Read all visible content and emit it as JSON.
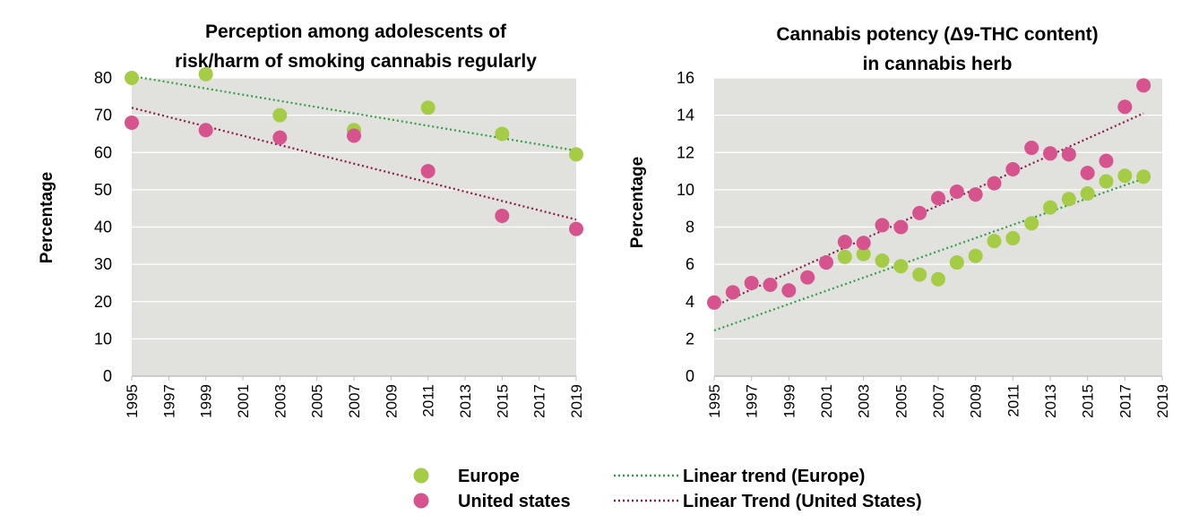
{
  "colors": {
    "europe": "#a4cc45",
    "united_states": "#d6538e",
    "trend_europe": "#2ea043",
    "trend_us": "#8b1a4a",
    "plot_bg": "#e1e1dd",
    "grid": "#ffffff"
  },
  "legend": {
    "europe": "Europe",
    "united_states": "United states",
    "trend_europe": "Linear trend (Europe)",
    "trend_us": "Linear Trend (United States)"
  },
  "chart_data": [
    {
      "type": "scatter",
      "title_lines": [
        "Perception among adolescents of",
        "risk/harm of smoking cannabis regularly"
      ],
      "ylabel": "Percentage",
      "xlim": [
        1995,
        2019
      ],
      "ylim": [
        0,
        80
      ],
      "xticks": [
        "1995",
        "1997",
        "1999",
        "2001",
        "2003",
        "2005",
        "2007",
        "2009",
        "2011",
        "2013",
        "2015",
        "2017",
        "2019"
      ],
      "yticks": [
        "0",
        "10",
        "20",
        "30",
        "40",
        "50",
        "60",
        "70",
        "80"
      ],
      "grid": true,
      "series": [
        {
          "name": "Europe",
          "x": [
            1995,
            1999,
            2003,
            2007,
            2011,
            2015,
            2019
          ],
          "y": [
            80,
            81,
            70,
            66,
            72,
            65,
            59.5
          ]
        },
        {
          "name": "United states",
          "x": [
            1995,
            1999,
            2003,
            2007,
            2011,
            2015,
            2019
          ],
          "y": [
            68,
            66,
            64,
            64.5,
            55,
            43,
            39.5
          ]
        }
      ],
      "trends": [
        {
          "name": "Linear trend (Europe)",
          "x": [
            1995,
            2019
          ],
          "y": [
            80.5,
            60.5
          ]
        },
        {
          "name": "Linear Trend (United States)",
          "x": [
            1995,
            2019
          ],
          "y": [
            72,
            42
          ]
        }
      ]
    },
    {
      "type": "scatter",
      "title_lines": [
        "Cannabis potency (Δ9-THC content)",
        "in cannabis herb"
      ],
      "ylabel": "Percentage",
      "xlim": [
        1995,
        2019
      ],
      "ylim": [
        0,
        16
      ],
      "xticks": [
        "1995",
        "1997",
        "1999",
        "2001",
        "2003",
        "2005",
        "2007",
        "2009",
        "2011",
        "2013",
        "2015",
        "2017",
        "2019"
      ],
      "yticks": [
        "0",
        "2",
        "4",
        "6",
        "8",
        "10",
        "12",
        "14",
        "16"
      ],
      "grid": true,
      "series": [
        {
          "name": "Europe",
          "x": [
            2002,
            2003,
            2004,
            2005,
            2006,
            2007,
            2008,
            2009,
            2010,
            2011,
            2012,
            2013,
            2014,
            2015,
            2016,
            2017,
            2018
          ],
          "y": [
            6.4,
            6.55,
            6.2,
            5.9,
            5.45,
            5.2,
            6.1,
            6.45,
            7.25,
            7.4,
            8.2,
            9.05,
            9.5,
            9.8,
            10.45,
            10.75,
            10.7
          ]
        },
        {
          "name": "United states",
          "x": [
            1995,
            1996,
            1997,
            1998,
            1999,
            2000,
            2001,
            2002,
            2003,
            2004,
            2005,
            2006,
            2007,
            2008,
            2009,
            2010,
            2011,
            2012,
            2013,
            2014,
            2015,
            2016,
            2017,
            2018
          ],
          "y": [
            3.95,
            4.5,
            5.0,
            4.9,
            4.6,
            5.3,
            6.1,
            7.2,
            7.15,
            8.1,
            8.0,
            8.75,
            9.55,
            9.9,
            9.75,
            10.35,
            11.1,
            12.25,
            11.95,
            11.9,
            10.9,
            11.55,
            14.45,
            15.6
          ]
        }
      ],
      "trends": [
        {
          "name": "Linear trend (Europe)",
          "x": [
            1995,
            2018
          ],
          "y": [
            2.45,
            10.6
          ]
        },
        {
          "name": "Linear Trend (United States)",
          "x": [
            1995,
            2018
          ],
          "y": [
            3.75,
            14.1
          ]
        }
      ]
    }
  ]
}
